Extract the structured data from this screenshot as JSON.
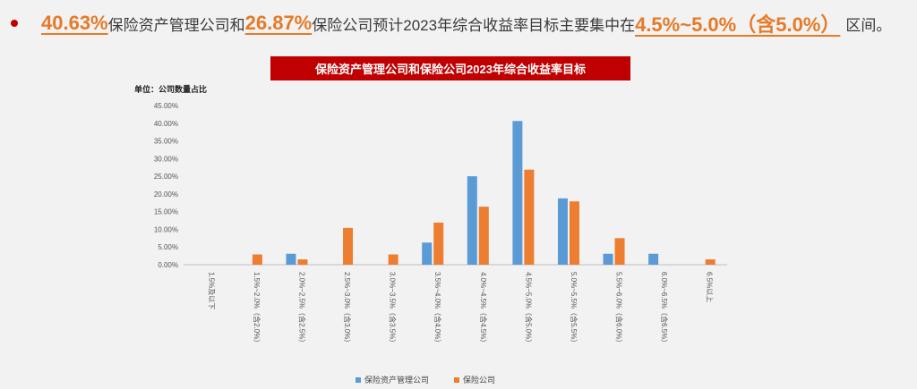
{
  "headline": {
    "p1": "40.63%",
    "t1": "保险资产管理公司和",
    "p2": "26.87%",
    "t2": "保险公司预计2023年综合收益率目标主要集中在",
    "p3": "4.5%~5.0%（含5.0%）",
    "t3": "区间。"
  },
  "colors": {
    "bar1": "#5b9bd5",
    "bar2": "#ed7d31",
    "title_bg": "#c00000",
    "highlight": "#e57a27"
  },
  "chart_data": {
    "type": "bar",
    "title": "保险资产管理公司和保险公司2023年综合收益率目标",
    "unit_label": "单位：公司数量占比",
    "ylim": [
      0,
      45
    ],
    "yticks": [
      "0.00%",
      "5.00%",
      "10.00%",
      "15.00%",
      "20.00%",
      "25.00%",
      "30.00%",
      "35.00%",
      "40.00%",
      "45.00%"
    ],
    "categories": [
      "1.5%及以下",
      "1.5%~2.0%（含2.0%）",
      "2.0%~2.5%（含2.5%）",
      "2.5%~3.0%（含3.0%）",
      "3.0%~3.5%（含3.5%）",
      "3.5%~4.0%（含4.0%）",
      "4.0%~4.5%（含4.5%）",
      "4.5%~5.0%（含5.0%）",
      "5.0%~5.5%（含5.5%）",
      "5.5%~6.0%（含6.0%）",
      "6.0%~6.5%（含6.5%）",
      "6.5%以上"
    ],
    "series": [
      {
        "name": "保险资产管理公司",
        "values": [
          0,
          0,
          3.1,
          0,
          0,
          6.25,
          25.0,
          40.63,
          18.75,
          3.1,
          3.1,
          0
        ]
      },
      {
        "name": "保险公司",
        "values": [
          0,
          2.9,
          1.5,
          10.4,
          2.9,
          11.9,
          16.4,
          26.87,
          17.9,
          7.5,
          0,
          1.5
        ]
      }
    ],
    "legend": "bottom"
  }
}
